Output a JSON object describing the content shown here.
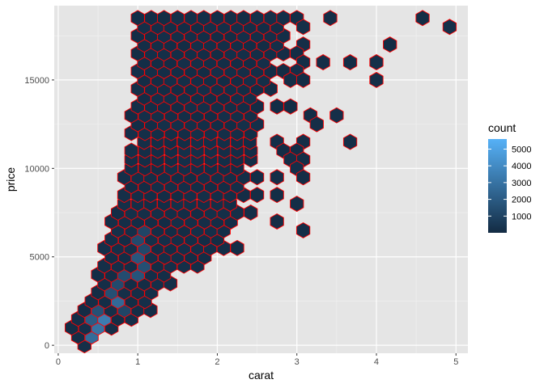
{
  "chart_data": {
    "type": "hexbin",
    "title": "",
    "xlabel": "carat",
    "ylabel": "price",
    "xlim": [
      -0.05,
      5.15
    ],
    "ylim": [
      -450,
      19200
    ],
    "x_ticks": [
      0,
      1,
      2,
      3,
      4,
      5
    ],
    "x_tick_labels": [
      "0",
      "1",
      "2",
      "3",
      "4",
      "5"
    ],
    "y_ticks": [
      0,
      5000,
      10000,
      15000
    ],
    "y_tick_labels": [
      "0",
      "5000",
      "10000",
      "15000"
    ],
    "grid": true,
    "hex_outline_color": "#ff0000",
    "panel_background": "#e5e5e5",
    "color_low": "#132b43",
    "color_high": "#56b1f7",
    "legend": {
      "title": "count",
      "position": "right",
      "min": 1,
      "max": 5600,
      "breaks": [
        1000,
        2000,
        3000,
        4000,
        5000
      ],
      "break_labels": [
        "1000",
        "2000",
        "3000",
        "4000",
        "5000"
      ]
    },
    "grid_spacing": {
      "dx": 0.1667,
      "dy": 500
    },
    "bins_dense": [
      {
        "y": 0,
        "x_min": 0.33,
        "x_max": 0.33
      },
      {
        "y": 500,
        "x_min": 0.25,
        "x_max": 0.42
      },
      {
        "y": 1000,
        "x_min": 0.17,
        "x_max": 0.83
      },
      {
        "y": 1500,
        "x_min": 0.25,
        "x_max": 0.92
      },
      {
        "y": 2000,
        "x_min": 0.33,
        "x_max": 1.17
      },
      {
        "y": 2500,
        "x_min": 0.42,
        "x_max": 1.25
      },
      {
        "y": 3000,
        "x_min": 0.5,
        "x_max": 1.33
      },
      {
        "y": 3500,
        "x_min": 0.58,
        "x_max": 1.58
      },
      {
        "y": 4000,
        "x_min": 0.5,
        "x_max": 1.5
      },
      {
        "y": 4500,
        "x_min": 0.58,
        "x_max": 1.75
      },
      {
        "y": 5000,
        "x_min": 0.67,
        "x_max": 2.0
      },
      {
        "y": 5500,
        "x_min": 0.58,
        "x_max": 2.25
      },
      {
        "y": 6000,
        "x_min": 0.67,
        "x_max": 2.17
      },
      {
        "y": 6500,
        "x_min": 0.75,
        "x_max": 2.25
      },
      {
        "y": 7000,
        "x_min": 0.67,
        "x_max": 2.33
      },
      {
        "y": 7500,
        "x_min": 0.75,
        "x_max": 2.42
      },
      {
        "y": 8000,
        "x_min": 0.83,
        "x_max": 2.33
      },
      {
        "y": 8500,
        "x_min": 0.83,
        "x_max": 2.58
      },
      {
        "y": 9000,
        "x_min": 0.92,
        "x_max": 2.33
      },
      {
        "y": 9500,
        "x_min": 0.83,
        "x_max": 2.58
      },
      {
        "y": 10000,
        "x_min": 0.92,
        "x_max": 2.33
      },
      {
        "y": 10500,
        "x_min": 0.92,
        "x_max": 2.58
      },
      {
        "y": 11000,
        "x_min": 0.92,
        "x_max": 2.5
      },
      {
        "y": 11500,
        "x_min": 1.08,
        "x_max": 2.42
      },
      {
        "y": 12000,
        "x_min": 0.92,
        "x_max": 2.5
      },
      {
        "y": 12500,
        "x_min": 1.0,
        "x_max": 2.58
      },
      {
        "y": 13000,
        "x_min": 0.92,
        "x_max": 2.5
      },
      {
        "y": 13500,
        "x_min": 1.0,
        "x_max": 2.58
      },
      {
        "y": 14000,
        "x_min": 1.08,
        "x_max": 2.5
      },
      {
        "y": 14500,
        "x_min": 1.0,
        "x_max": 2.75
      },
      {
        "y": 15000,
        "x_min": 1.08,
        "x_max": 2.67
      },
      {
        "y": 15500,
        "x_min": 1.0,
        "x_max": 2.75
      },
      {
        "y": 16000,
        "x_min": 1.08,
        "x_max": 2.67
      },
      {
        "y": 16500,
        "x_min": 1.0,
        "x_max": 2.92
      },
      {
        "y": 17000,
        "x_min": 1.08,
        "x_max": 2.83
      },
      {
        "y": 17500,
        "x_min": 1.0,
        "x_max": 2.92
      },
      {
        "y": 18000,
        "x_min": 1.08,
        "x_max": 2.83
      },
      {
        "y": 18500,
        "x_min": 1.0,
        "x_max": 2.92
      }
    ],
    "bins_sparse": [
      {
        "x": 3.0,
        "y": 18500
      },
      {
        "x": 3.08,
        "y": 18000
      },
      {
        "x": 3.42,
        "y": 18500
      },
      {
        "x": 4.58,
        "y": 18500
      },
      {
        "x": 4.92,
        "y": 18000
      },
      {
        "x": 4.17,
        "y": 17000
      },
      {
        "x": 3.08,
        "y": 17000
      },
      {
        "x": 3.0,
        "y": 16500
      },
      {
        "x": 3.08,
        "y": 16000
      },
      {
        "x": 3.33,
        "y": 16000
      },
      {
        "x": 3.67,
        "y": 16000
      },
      {
        "x": 4.0,
        "y": 16000
      },
      {
        "x": 3.0,
        "y": 15500
      },
      {
        "x": 2.83,
        "y": 15500
      },
      {
        "x": 2.92,
        "y": 15000
      },
      {
        "x": 3.08,
        "y": 15000
      },
      {
        "x": 4.0,
        "y": 15000
      },
      {
        "x": 2.75,
        "y": 13500
      },
      {
        "x": 2.92,
        "y": 13500
      },
      {
        "x": 3.17,
        "y": 13000
      },
      {
        "x": 3.5,
        "y": 13000
      },
      {
        "x": 3.25,
        "y": 12500
      },
      {
        "x": 2.75,
        "y": 11500
      },
      {
        "x": 3.08,
        "y": 11500
      },
      {
        "x": 3.67,
        "y": 11500
      },
      {
        "x": 2.83,
        "y": 11000
      },
      {
        "x": 3.0,
        "y": 11000
      },
      {
        "x": 2.92,
        "y": 10500
      },
      {
        "x": 3.08,
        "y": 10500
      },
      {
        "x": 3.0,
        "y": 10000
      },
      {
        "x": 3.08,
        "y": 9500
      },
      {
        "x": 2.75,
        "y": 9500
      },
      {
        "x": 2.75,
        "y": 8500
      },
      {
        "x": 3.0,
        "y": 8000
      },
      {
        "x": 2.75,
        "y": 7000
      },
      {
        "x": 3.08,
        "y": 6500
      }
    ],
    "bins_holes": [
      {
        "x": 1.83,
        "y": 7500
      },
      {
        "x": 2.08,
        "y": 6000
      },
      {
        "x": 2.25,
        "y": 6500
      },
      {
        "x": 2.42,
        "y": 7000
      },
      {
        "x": 2.08,
        "y": 7000
      },
      {
        "x": 2.58,
        "y": 7500
      },
      {
        "x": 2.0,
        "y": 5500
      },
      {
        "x": 2.42,
        "y": 8000
      },
      {
        "x": 2.5,
        "y": 9000
      },
      {
        "x": 2.58,
        "y": 9500
      },
      {
        "x": 2.58,
        "y": 10500
      },
      {
        "x": 2.5,
        "y": 11000
      },
      {
        "x": 2.42,
        "y": 11500
      },
      {
        "x": 2.5,
        "y": 12000
      },
      {
        "x": 2.67,
        "y": 15000
      },
      {
        "x": 2.67,
        "y": 16000
      },
      {
        "x": 2.83,
        "y": 17000
      },
      {
        "x": 2.83,
        "y": 18000
      }
    ],
    "bins_bright": [
      {
        "x": 0.33,
        "y": 500,
        "count": 5600
      },
      {
        "x": 0.33,
        "y": 1000,
        "count": 4500
      },
      {
        "x": 0.42,
        "y": 500,
        "count": 2700
      },
      {
        "x": 0.5,
        "y": 1000,
        "count": 3000
      },
      {
        "x": 0.58,
        "y": 1500,
        "count": 3400
      },
      {
        "x": 0.67,
        "y": 1500,
        "count": 2400
      },
      {
        "x": 0.67,
        "y": 2000,
        "count": 2200
      },
      {
        "x": 0.75,
        "y": 2500,
        "count": 2600
      },
      {
        "x": 0.42,
        "y": 1500,
        "count": 2000
      },
      {
        "x": 0.58,
        "y": 1000,
        "count": 1700
      },
      {
        "x": 0.5,
        "y": 2000,
        "count": 1600
      },
      {
        "x": 0.67,
        "y": 3000,
        "count": 1500
      },
      {
        "x": 0.75,
        "y": 3500,
        "count": 1300
      },
      {
        "x": 0.83,
        "y": 4000,
        "count": 1400
      },
      {
        "x": 0.92,
        "y": 4500,
        "count": 1600
      },
      {
        "x": 1.0,
        "y": 5000,
        "count": 1800
      },
      {
        "x": 1.0,
        "y": 4000,
        "count": 1700
      },
      {
        "x": 1.08,
        "y": 4500,
        "count": 1500
      },
      {
        "x": 1.0,
        "y": 6000,
        "count": 1300
      },
      {
        "x": 0.92,
        "y": 5500,
        "count": 1400
      },
      {
        "x": 1.08,
        "y": 5500,
        "count": 1200
      },
      {
        "x": 1.0,
        "y": 3500,
        "count": 1300
      },
      {
        "x": 1.08,
        "y": 6500,
        "count": 1100
      },
      {
        "x": 0.92,
        "y": 3000,
        "count": 1200
      },
      {
        "x": 0.83,
        "y": 2000,
        "count": 1100
      },
      {
        "x": 0.25,
        "y": 1000,
        "count": 1500
      },
      {
        "x": 0.5,
        "y": 500,
        "count": 900
      }
    ]
  }
}
